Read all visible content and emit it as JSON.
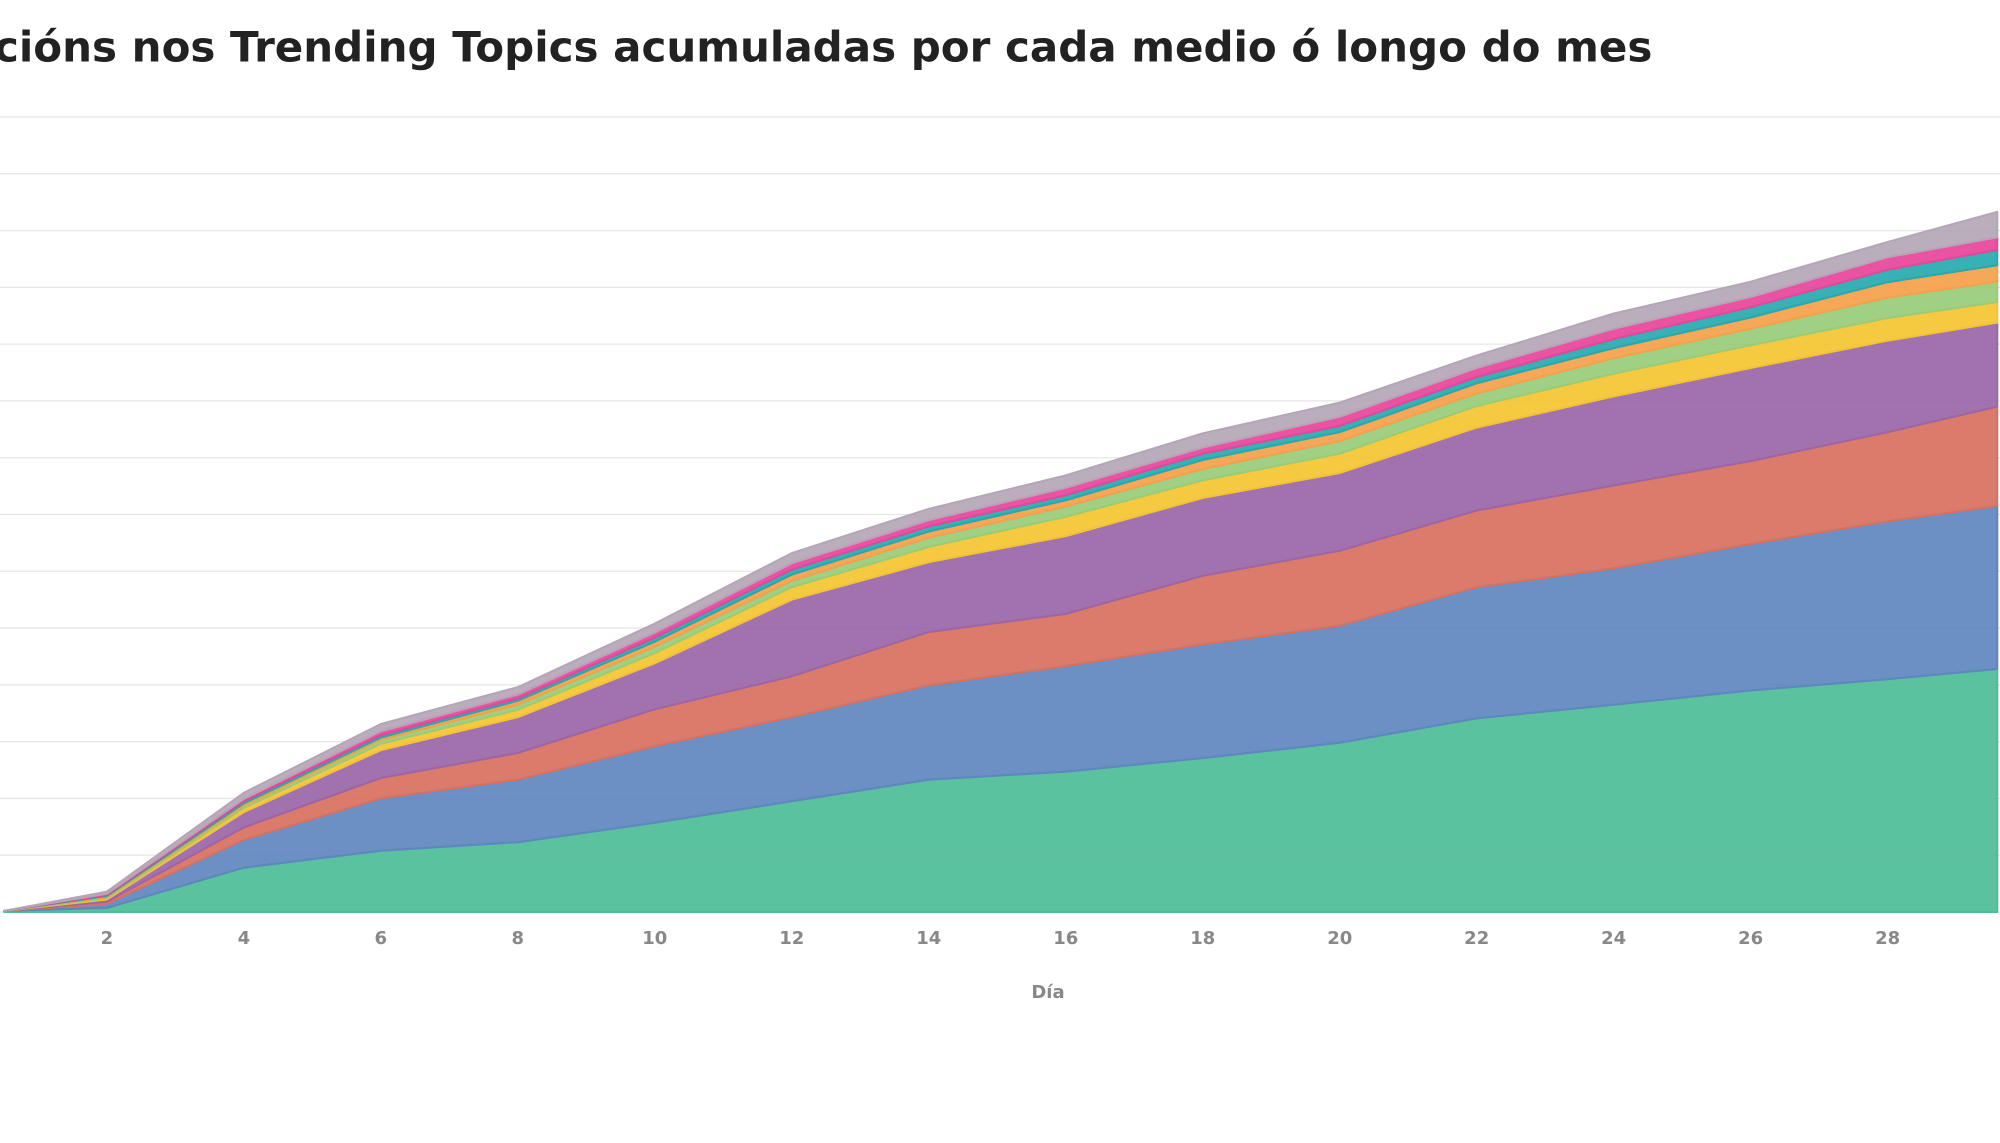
{
  "chart_data": {
    "type": "stacked_area",
    "title": "cións nos Trending Topics acumuladas por cada medio ó longo do mes",
    "x_label": "Día",
    "x": [
      0.5,
      2,
      4,
      6,
      8,
      10,
      12,
      14,
      16,
      18,
      20,
      22,
      24,
      26,
      28,
      29.6
    ],
    "xlim": [
      0.44,
      29.64
    ],
    "xticks": [
      2,
      4,
      6,
      8,
      10,
      12,
      14,
      16,
      18,
      20,
      22,
      24,
      26,
      28
    ],
    "ylim": [
      0,
      14
    ],
    "yticks": [
      0,
      1,
      2,
      3,
      4,
      5,
      6,
      7,
      8,
      9,
      10,
      11,
      12,
      13,
      14
    ],
    "show_ytick_labels": false,
    "grid": true,
    "series": [
      {
        "color": "#4dbd98",
        "values": [
          0.02,
          0.07,
          0.78,
          1.08,
          1.23,
          1.57,
          1.95,
          2.33,
          2.47,
          2.71,
          2.98,
          3.41,
          3.65,
          3.9,
          4.1,
          4.28
        ]
      },
      {
        "color": "#5f86bf",
        "values": [
          0,
          0.07,
          0.49,
          0.92,
          1.1,
          1.35,
          1.48,
          1.66,
          1.86,
          2.0,
          2.06,
          2.31,
          2.4,
          2.58,
          2.78,
          2.87
        ]
      },
      {
        "color": "#d8705e",
        "values": [
          0,
          0.04,
          0.22,
          0.36,
          0.47,
          0.65,
          0.72,
          0.94,
          0.92,
          1.21,
          1.32,
          1.35,
          1.46,
          1.46,
          1.57,
          1.75
        ]
      },
      {
        "color": "#9a66a8",
        "values": [
          0,
          0.04,
          0.27,
          0.49,
          0.63,
          0.81,
          1.35,
          1.23,
          1.37,
          1.37,
          1.37,
          1.46,
          1.57,
          1.64,
          1.61,
          1.48
        ]
      },
      {
        "color": "#f4c430",
        "values": [
          0,
          0.02,
          0.07,
          0.11,
          0.13,
          0.18,
          0.22,
          0.27,
          0.34,
          0.31,
          0.34,
          0.38,
          0.4,
          0.4,
          0.4,
          0.36
        ]
      },
      {
        "color": "#98cc7a",
        "values": [
          0,
          0.02,
          0.04,
          0.07,
          0.09,
          0.11,
          0.11,
          0.16,
          0.18,
          0.2,
          0.22,
          0.22,
          0.27,
          0.29,
          0.36,
          0.36
        ]
      },
      {
        "color": "#f5a04a",
        "values": [
          0,
          0.02,
          0.04,
          0.04,
          0.07,
          0.09,
          0.11,
          0.11,
          0.11,
          0.16,
          0.16,
          0.18,
          0.18,
          0.2,
          0.27,
          0.29
        ]
      },
      {
        "color": "#26a9b0",
        "values": [
          0,
          0.02,
          0.04,
          0.04,
          0.04,
          0.07,
          0.09,
          0.09,
          0.09,
          0.11,
          0.11,
          0.11,
          0.16,
          0.18,
          0.22,
          0.27
        ]
      },
      {
        "color": "#e8449a",
        "values": [
          0,
          0.02,
          0.04,
          0.07,
          0.07,
          0.09,
          0.11,
          0.11,
          0.13,
          0.11,
          0.16,
          0.16,
          0.18,
          0.18,
          0.22,
          0.22
        ]
      },
      {
        "color": "#b4a6b6",
        "values": [
          0,
          0.04,
          0.11,
          0.13,
          0.13,
          0.16,
          0.18,
          0.2,
          0.22,
          0.25,
          0.25,
          0.22,
          0.27,
          0.27,
          0.27,
          0.45
        ]
      }
    ]
  }
}
